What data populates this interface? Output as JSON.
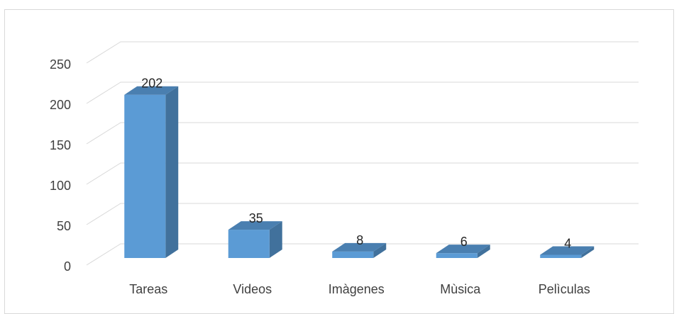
{
  "chart_data": {
    "type": "bar",
    "style": "3d-column",
    "categories": [
      "Tareas",
      "Videos",
      "Imàgenes",
      "Mùsica",
      "Pelìculas"
    ],
    "values": [
      202,
      35,
      8,
      6,
      4
    ],
    "data_labels": [
      "202",
      "35",
      "8",
      "6",
      "4"
    ],
    "yticks": [
      "0",
      "50",
      "100",
      "150",
      "200",
      "250"
    ],
    "ylim": [
      0,
      250
    ],
    "grid": true,
    "legend": "none",
    "colors": {
      "front": "#5b9bd5",
      "side": "#41719c",
      "top": "#4a7fb0",
      "grid": "#d9d9d9",
      "text": "#404040"
    }
  }
}
